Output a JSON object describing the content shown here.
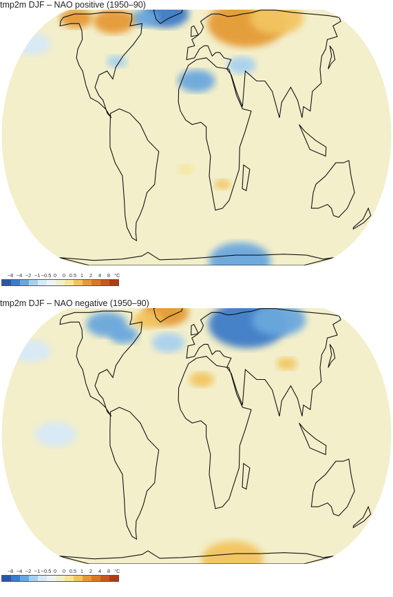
{
  "palette": {
    "ocean_neutral": "#f3efcb",
    "land_outline": "#111111",
    "cold_1": "#d6e9f7",
    "cold_2": "#a8d0ee",
    "cold_3": "#6ba7dd",
    "cold_4": "#3e7cc8",
    "cold_5": "#2a58a8",
    "warm_1": "#f8e59a",
    "warm_2": "#f2c45e",
    "warm_3": "#e59a36",
    "warm_4": "#d97a23"
  },
  "legend": {
    "ticks": [
      "−8",
      "−4",
      "−2",
      "−1",
      "−0.5",
      "0",
      "0",
      "0.5",
      "1",
      "2",
      "4",
      "8"
    ],
    "unit": "°C",
    "colors": [
      "#2a58a8",
      "#3e7cc8",
      "#6ba7dd",
      "#a8d0ee",
      "#d6e9f7",
      "#eef4f6",
      "#f3efcb",
      "#f8e59a",
      "#f2c45e",
      "#e59a36",
      "#d97a23",
      "#c9581a",
      "#b03c12"
    ]
  },
  "panels": [
    {
      "title": "tmp2m DJF – NAO positive (1950–90)",
      "anomalies": [
        {
          "region": "greenland",
          "lon": -40,
          "lat": 70,
          "r": 22,
          "level": "cold_4"
        },
        {
          "region": "baffin",
          "lon": -65,
          "lat": 65,
          "r": 14,
          "level": "cold_3"
        },
        {
          "region": "alaska",
          "lon": -150,
          "lat": 65,
          "r": 16,
          "level": "warm_3"
        },
        {
          "region": "northern-canada",
          "lon": -100,
          "lat": 62,
          "r": 20,
          "level": "warm_3"
        },
        {
          "region": "eurasia",
          "lon": 60,
          "lat": 60,
          "r": 38,
          "level": "warm_3"
        },
        {
          "region": "siberia",
          "lon": 100,
          "lat": 65,
          "r": 26,
          "level": "warm_2"
        },
        {
          "region": "north-africa",
          "lon": 0,
          "lat": 25,
          "r": 18,
          "level": "cold_3"
        },
        {
          "region": "middle-east",
          "lon": 45,
          "lat": 33,
          "r": 14,
          "level": "cold_2"
        },
        {
          "region": "southern-africa",
          "lon": 25,
          "lat": -22,
          "r": 8,
          "level": "warm_2"
        },
        {
          "region": "south-atlantic",
          "lon": -10,
          "lat": -15,
          "r": 8,
          "level": "warm_1"
        },
        {
          "region": "east-us",
          "lon": -80,
          "lat": 35,
          "r": 10,
          "level": "cold_2"
        },
        {
          "region": "antarctica",
          "lon": 60,
          "lat": -75,
          "r": 30,
          "level": "cold_3"
        },
        {
          "region": "north-pacific",
          "lon": -175,
          "lat": 45,
          "r": 18,
          "level": "cold_1"
        }
      ]
    },
    {
      "title": "tmp2m DJF – NAO negative (1950–90)",
      "anomalies": [
        {
          "region": "greenland",
          "lon": -40,
          "lat": 70,
          "r": 22,
          "level": "warm_3"
        },
        {
          "region": "baffin",
          "lon": -60,
          "lat": 62,
          "r": 14,
          "level": "warm_2"
        },
        {
          "region": "northern-canada",
          "lon": -105,
          "lat": 58,
          "r": 20,
          "level": "cold_3"
        },
        {
          "region": "east-canada",
          "lon": -80,
          "lat": 50,
          "r": 14,
          "level": "cold_3"
        },
        {
          "region": "eurasia",
          "lon": 60,
          "lat": 58,
          "r": 38,
          "level": "cold_4"
        },
        {
          "region": "siberia",
          "lon": 100,
          "lat": 62,
          "r": 26,
          "level": "cold_3"
        },
        {
          "region": "north-africa",
          "lon": 5,
          "lat": 25,
          "r": 12,
          "level": "warm_2"
        },
        {
          "region": "tibet",
          "lon": 90,
          "lat": 33,
          "r": 10,
          "level": "warm_2"
        },
        {
          "region": "north-atlantic",
          "lon": -30,
          "lat": 45,
          "r": 16,
          "level": "cold_2"
        },
        {
          "region": "antarctica",
          "lon": 50,
          "lat": -75,
          "r": 30,
          "level": "warm_2"
        },
        {
          "region": "north-pacific",
          "lon": -170,
          "lat": 40,
          "r": 18,
          "level": "cold_1"
        },
        {
          "region": "equatorial-pacific",
          "lon": -130,
          "lat": 0,
          "r": 20,
          "level": "cold_1"
        }
      ]
    }
  ]
}
